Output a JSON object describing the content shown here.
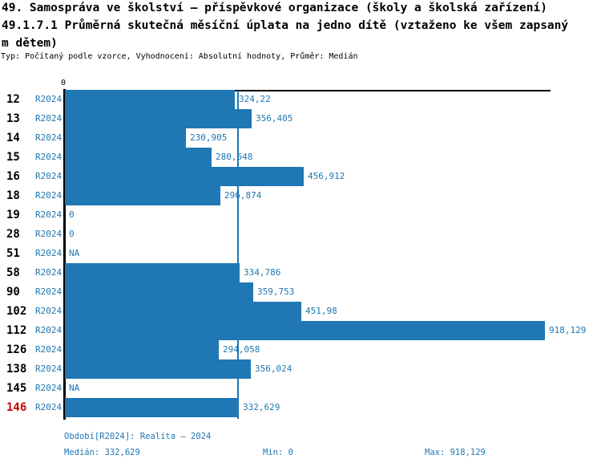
{
  "header": {
    "title_line1": "49. Samospráva ve školství – příspěvkové organizace (školy a školská zařízení)",
    "title_line2": "49.1.7.1 Průměrná skutečná měsíční úplata na jedno dítě (vztaženo ke všem zapsaný",
    "title_line2_cont": "m dětem)",
    "meta_line": "Typ: Počítaný podle vzorce, Vyhodnocení: Absolutní hodnoty, Průměr: Medián"
  },
  "chart_data": {
    "type": "bar",
    "orientation": "horizontal",
    "title": "49.1.7.1 Průměrná skutečná měsíční úplata na jedno dítě (vztaženo ke všem zapsaným dětem)",
    "series_name": "R2024",
    "zero_tick_label": "0",
    "xlim": [
      0,
      918.129
    ],
    "median_line_value": 332.629,
    "categories": [
      "12",
      "13",
      "14",
      "15",
      "16",
      "18",
      "19",
      "28",
      "51",
      "58",
      "90",
      "102",
      "112",
      "126",
      "138",
      "145",
      "146"
    ],
    "values": [
      324.22,
      356.405,
      230.905,
      280.648,
      456.912,
      296.874,
      0,
      0,
      null,
      334.786,
      359.753,
      451.98,
      918.129,
      294.058,
      356.024,
      null,
      332.629
    ],
    "value_labels": [
      "324,22",
      "356,405",
      "230,905",
      "280,648",
      "456,912",
      "296,874",
      "0",
      "0",
      "NA",
      "334,786",
      "359,753",
      "451,98",
      "918,129",
      "294,058",
      "356,024",
      "NA",
      "332,629"
    ],
    "highlighted_category": "146",
    "legend_position": "none",
    "grid": false,
    "colors": {
      "bar": "#1f77b4",
      "text_blue": "#1f77b4",
      "label_black": "#000000",
      "highlight_red": "#cc0000",
      "axis": "#000000"
    }
  },
  "footer": {
    "period_line": "Období[R2024]: Realita – 2024",
    "median_label": "Medián: 332,629",
    "min_label": "Min: 0",
    "max_label": "Max: 918,129"
  }
}
